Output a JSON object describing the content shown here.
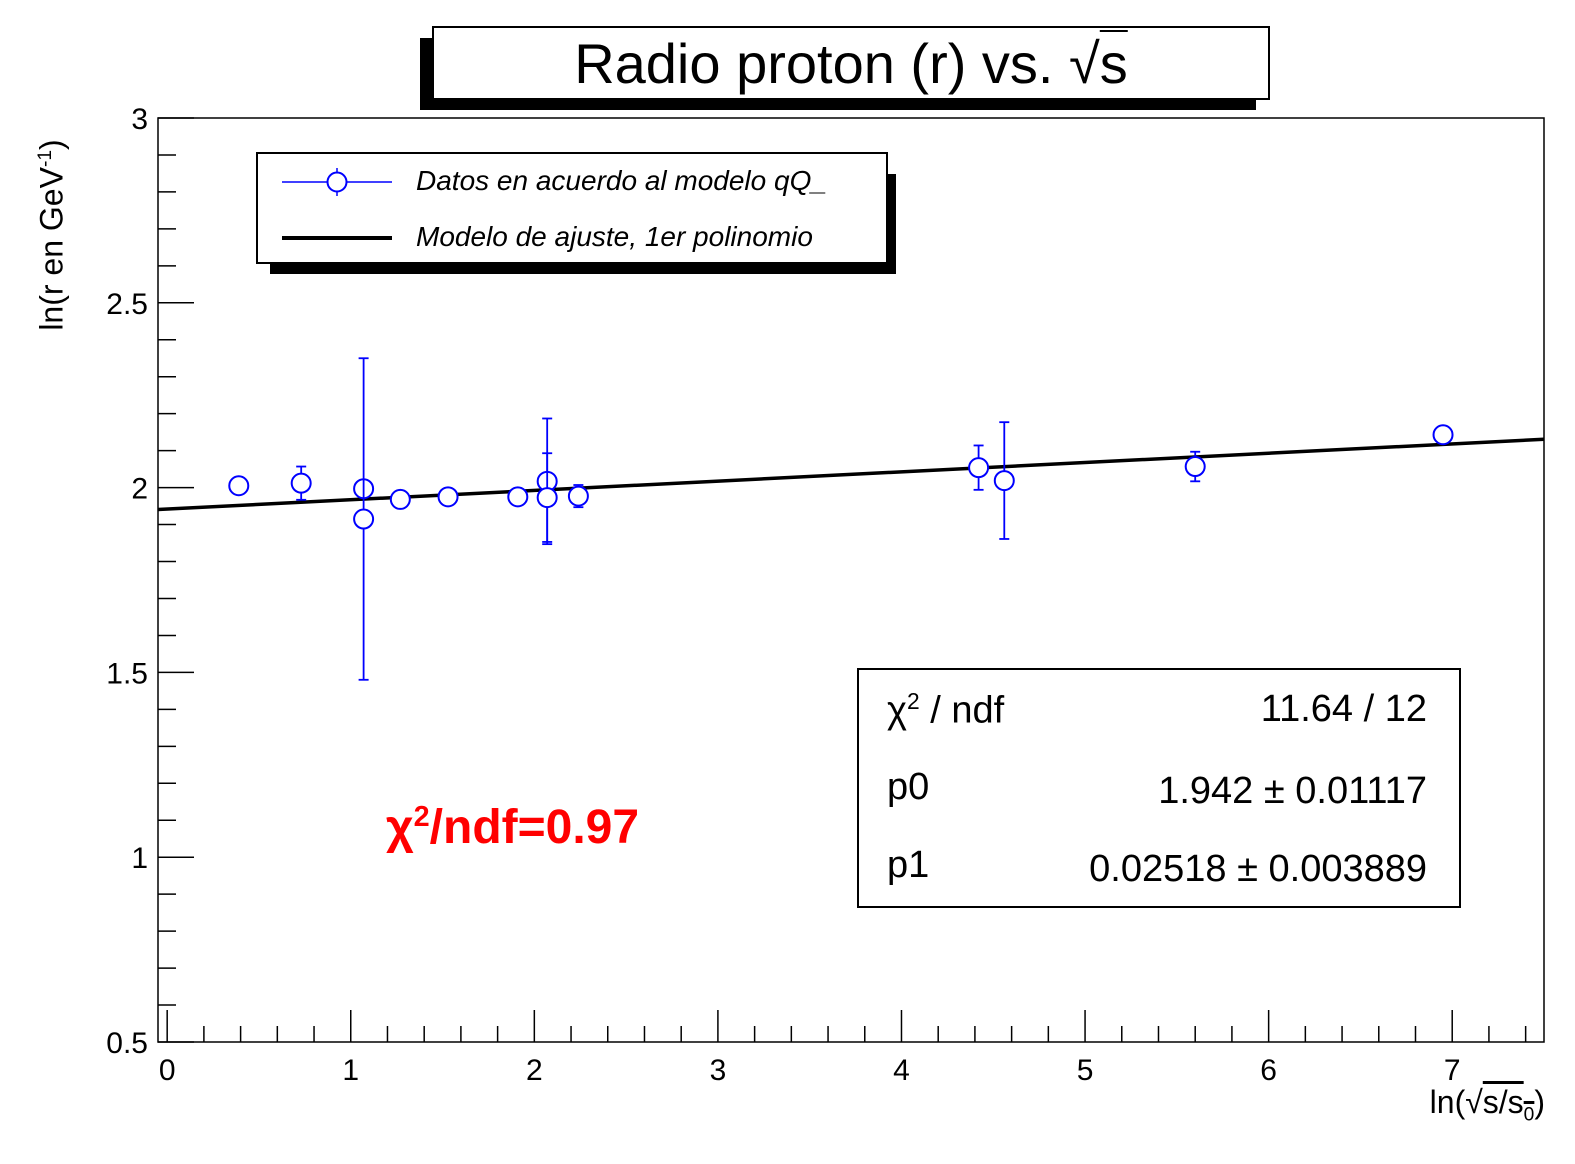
{
  "title": {
    "prefix": "Radio proton (r) vs. ",
    "sqrt_arg": "s"
  },
  "axes": {
    "ylabel": {
      "main": "ln(r en GeV",
      "sup": "-1",
      "close": ")"
    },
    "xlabel": {
      "prefix": "ln(",
      "sqrt_arg": "s/s",
      "sub": "0",
      "close": ")"
    }
  },
  "legend": {
    "data_label": "Datos en acuerdo al modelo qQ_",
    "fit_label": "Modelo de ajuste, 1er polinomio"
  },
  "stats": {
    "rows": [
      {
        "label_main": "χ",
        "label_sup": "2",
        "label_rest": " / ndf",
        "value": "11.64 / 12"
      },
      {
        "label_main": "p0",
        "label_sup": "",
        "label_rest": "",
        "value": "1.942 ± 0.01117"
      },
      {
        "label_main": "p1",
        "label_sup": "",
        "label_rest": "",
        "value": "0.02518 ± 0.003889"
      }
    ]
  },
  "annotation": {
    "main": "χ",
    "sup": "2",
    "rest": "/ndf=0.97",
    "color": "#ff0000"
  },
  "colors": {
    "data": "#0000ff",
    "fit": "#000000",
    "annotation": "#ff0000"
  },
  "chart_data": {
    "type": "scatter",
    "x_ticks": [
      "0",
      "1",
      "2",
      "3",
      "4",
      "5",
      "6",
      "7"
    ],
    "y_ticks": [
      "0.5",
      "1",
      "1.5",
      "2",
      "2.5",
      "3"
    ],
    "xlim": [
      -0.05,
      7.5
    ],
    "ylim": [
      0.5,
      3
    ],
    "grid": false,
    "legend_position": "top-left",
    "series": [
      {
        "name": "Datos en acuerdo al modelo qQ_",
        "type": "points_with_errors",
        "points": [
          {
            "x": 0.39,
            "y": 2.005,
            "err": 0.0
          },
          {
            "x": 0.73,
            "y": 2.012,
            "err": 0.045
          },
          {
            "x": 1.07,
            "y": 1.997,
            "err": 0.0
          },
          {
            "x": 1.07,
            "y": 1.915,
            "err": 0.435
          },
          {
            "x": 1.27,
            "y": 1.968,
            "err": 0.0
          },
          {
            "x": 1.53,
            "y": 1.975,
            "err": 0.0
          },
          {
            "x": 1.91,
            "y": 1.975,
            "err": 0.0
          },
          {
            "x": 2.07,
            "y": 2.017,
            "err": 0.17
          },
          {
            "x": 2.07,
            "y": 1.973,
            "err": 0.12
          },
          {
            "x": 2.24,
            "y": 1.977,
            "err": 0.03
          },
          {
            "x": 4.42,
            "y": 2.054,
            "err": 0.06
          },
          {
            "x": 4.56,
            "y": 2.019,
            "err": 0.158
          },
          {
            "x": 5.6,
            "y": 2.057,
            "err": 0.04
          },
          {
            "x": 6.95,
            "y": 2.143,
            "err": 0.0
          }
        ]
      },
      {
        "name": "Modelo de ajuste, 1er polinomio",
        "type": "line",
        "intercept": 1.942,
        "slope": 0.02518,
        "x_range": [
          -0.05,
          7.5
        ]
      }
    ]
  }
}
